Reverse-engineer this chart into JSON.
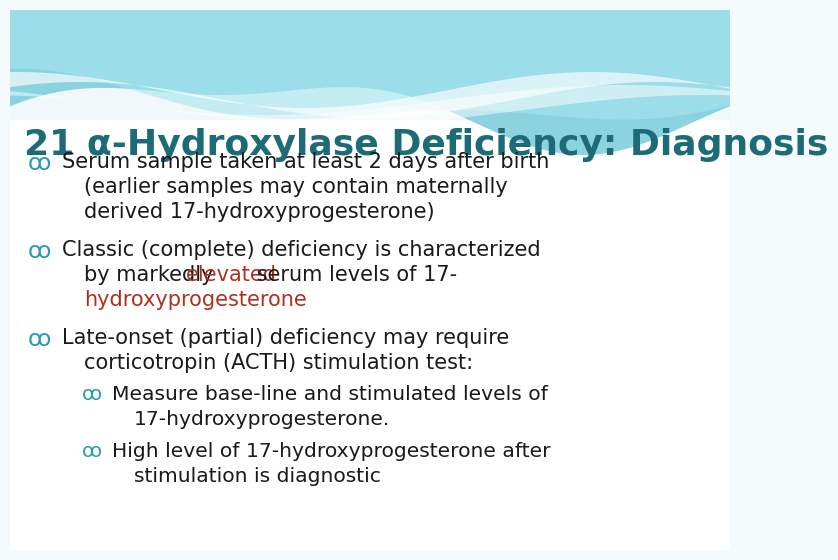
{
  "title": "21 α-Hydroxylase Deficiency: Diagnosis",
  "title_color": "#1e6b78",
  "title_fontsize": 26,
  "title_bold": true,
  "bullet_color": "#2a9aad",
  "text_color": "#1a1a1a",
  "red_color": "#b03020",
  "font_family": "Georgia",
  "body_fontsize": 15.0,
  "wave_colors": [
    "#a8dfe8",
    "#c5ecf2",
    "#d8f2f6"
  ],
  "bg_color": "#f5fbfc"
}
